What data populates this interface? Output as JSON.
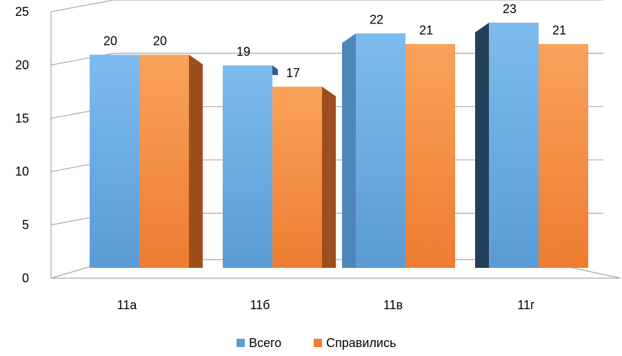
{
  "chart_data": {
    "type": "bar",
    "categories": [
      "11а",
      "11б",
      "11в",
      "11г"
    ],
    "series": [
      {
        "name": "Всего",
        "values": [
          20,
          19,
          22,
          23
        ],
        "color": "#5B9BD5"
      },
      {
        "name": "Справились",
        "values": [
          20,
          17,
          21,
          21
        ],
        "color": "#ED7D31"
      }
    ],
    "title": "",
    "xlabel": "",
    "ylabel": "",
    "ylim": [
      0,
      25
    ],
    "yticks": [
      "0",
      "5",
      "10",
      "15",
      "20",
      "25"
    ],
    "grid": true,
    "legend_position": "bottom",
    "style": "3d-clustered-column"
  }
}
